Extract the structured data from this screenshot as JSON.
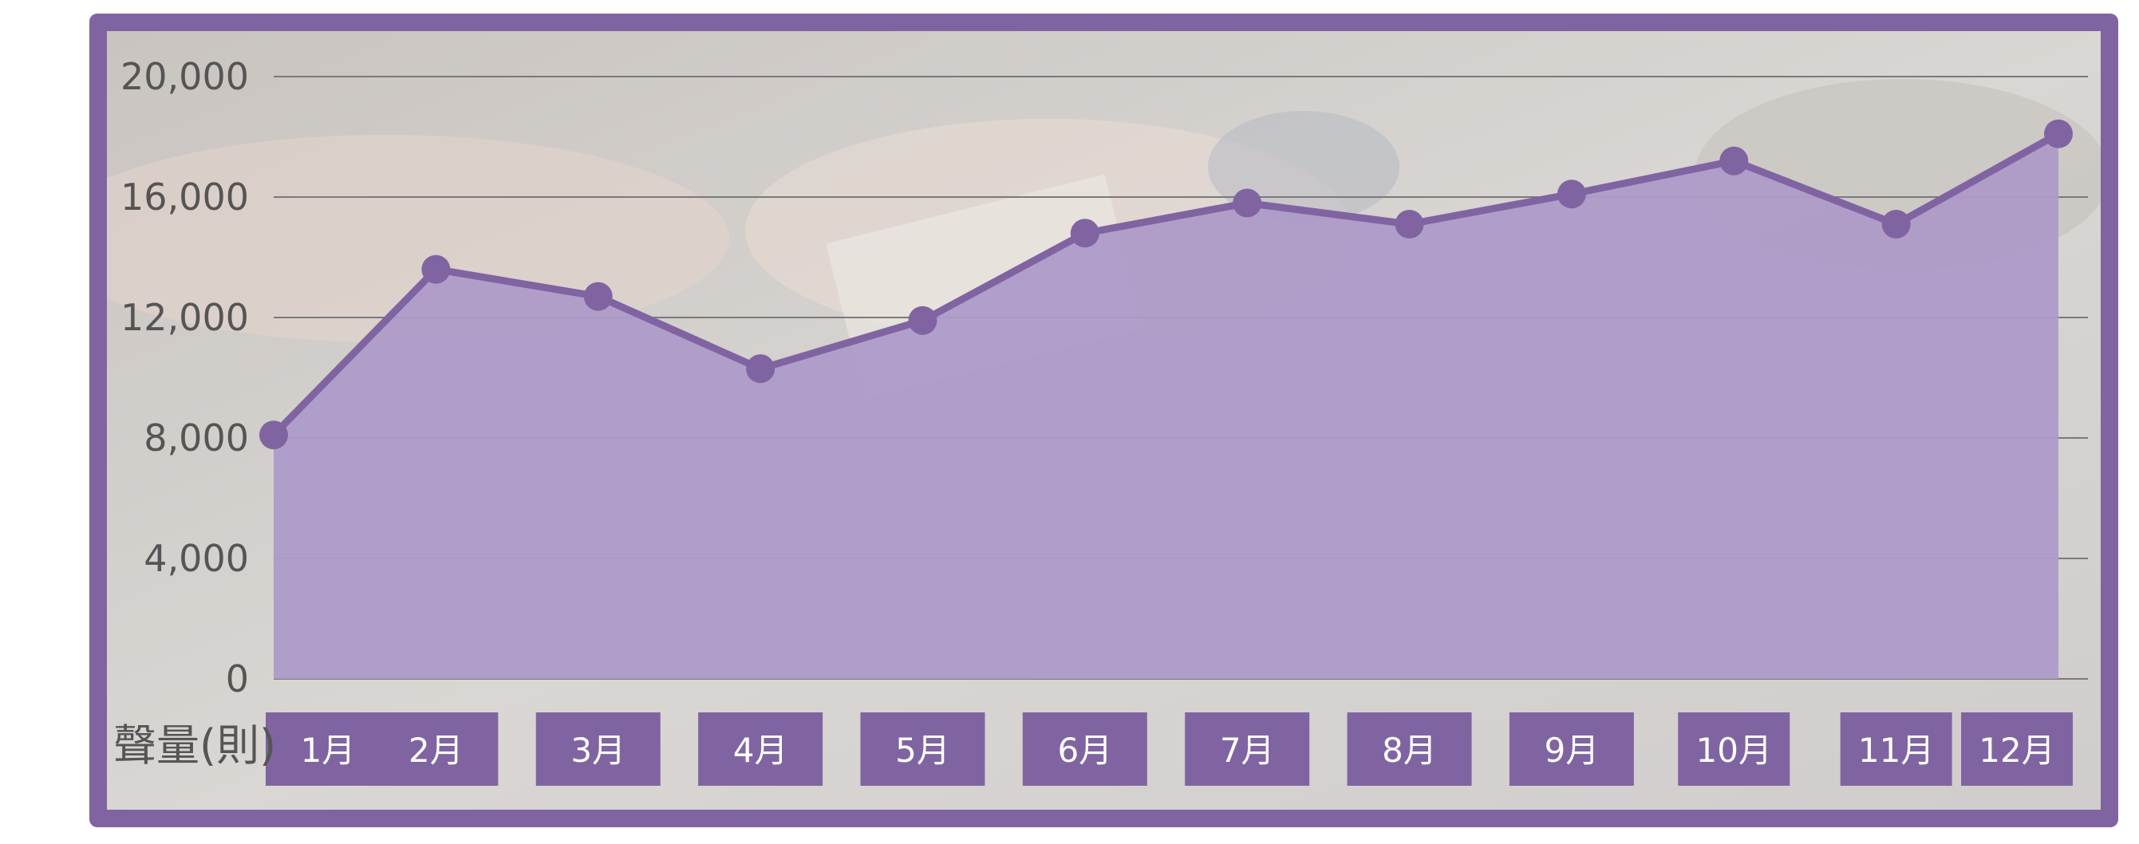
{
  "colors": {
    "frame": "#8064a2",
    "area": "#ad9bc8",
    "line": "#8064a2",
    "grid": "#7a7a7a",
    "tickText": "#555555",
    "labelBox": "#8064a2"
  },
  "chart_data": {
    "type": "area",
    "title": "",
    "xlabel": "聲量(則)",
    "ylabel": "",
    "categories": [
      "1月",
      "2月",
      "3月",
      "4月",
      "5月",
      "6月",
      "7月",
      "8月",
      "9月",
      "10月",
      "11月",
      "12月"
    ],
    "values": [
      8100,
      13600,
      12700,
      10300,
      11900,
      14800,
      15800,
      15100,
      16100,
      17200,
      15100,
      18100
    ],
    "yticks": [
      "0",
      "4,000",
      "8,000",
      "12,000",
      "16,000",
      "20,000"
    ],
    "ylim": [
      0,
      20000
    ],
    "grid": true,
    "legend": "none",
    "markers": true
  }
}
